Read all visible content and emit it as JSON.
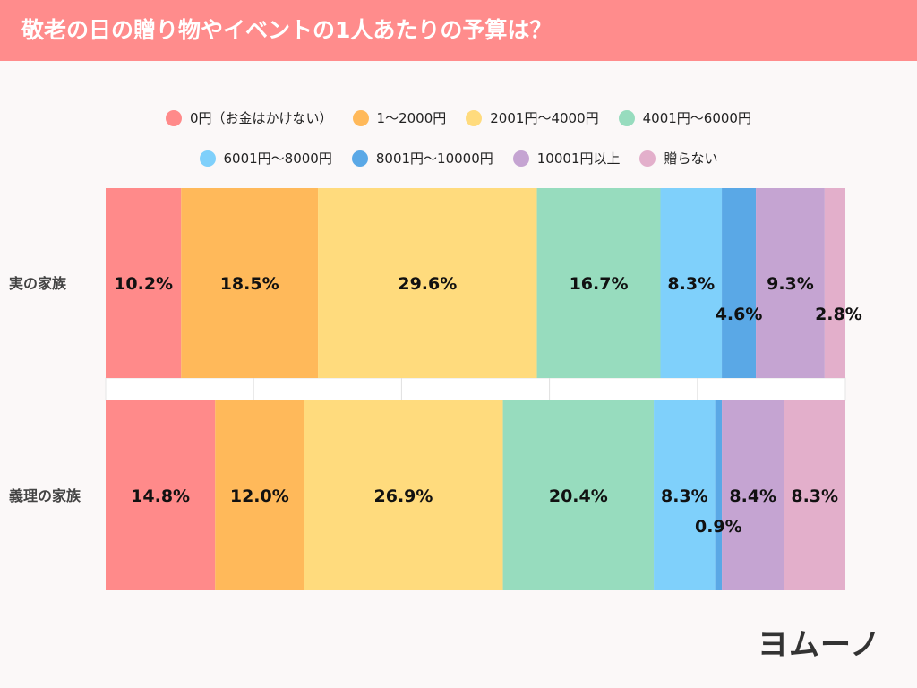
{
  "header": {
    "title": "敬老の日の贈り物やイベントの1人あたりの予算は？"
  },
  "logo": {
    "text": "ヨムーノ"
  },
  "chart_data": {
    "type": "bar",
    "orientation": "horizontal",
    "stacked": true,
    "percent": true,
    "title": "敬老の日の贈り物やイベントの1人あたりの予算は？",
    "categories": [
      "実の家族",
      "義理の家族"
    ],
    "xlim": [
      0,
      100
    ],
    "legend_position": "top",
    "series": [
      {
        "name": "0円（お金はかけない）",
        "color": "#ff8a8a",
        "values": [
          10.2,
          14.8
        ]
      },
      {
        "name": "1〜2000円",
        "color": "#ffb95a",
        "values": [
          18.5,
          12.0
        ]
      },
      {
        "name": "2001円〜4000円",
        "color": "#ffdb7d",
        "values": [
          29.6,
          26.9
        ]
      },
      {
        "name": "4001円〜6000円",
        "color": "#97dcbe",
        "values": [
          16.7,
          20.4
        ]
      },
      {
        "name": "6001円〜8000円",
        "color": "#7fd0fb",
        "values": [
          8.3,
          8.3
        ]
      },
      {
        "name": "8001円〜10000円",
        "color": "#5aa8e6",
        "values": [
          4.6,
          0.9
        ]
      },
      {
        "name": "10001円以上",
        "color": "#c5a4d2",
        "values": [
          9.3,
          8.4
        ]
      },
      {
        "name": "贈らない",
        "color": "#e3afcb",
        "values": [
          2.8,
          8.3
        ]
      }
    ],
    "labels": [
      [
        "10.2%",
        "18.5%",
        "29.6%",
        "16.7%",
        "8.3%",
        "4.6%",
        "9.3%",
        "2.8%"
      ],
      [
        "14.8%",
        "12.0%",
        "26.9%",
        "20.4%",
        "8.3%",
        "0.9%",
        "8.4%",
        "8.3%"
      ]
    ]
  }
}
